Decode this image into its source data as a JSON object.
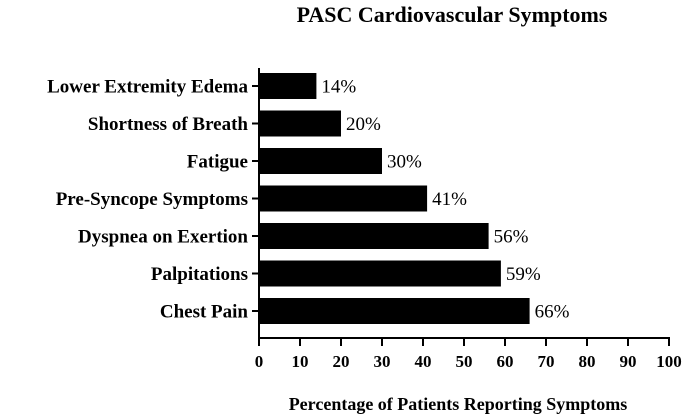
{
  "chart_data": {
    "type": "bar",
    "orientation": "horizontal",
    "title": "PASC Cardiovascular Symptoms",
    "xlabel": "Percentage of Patients Reporting Symptoms",
    "ylabel": "",
    "xlim": [
      0,
      100
    ],
    "x_ticks": [
      0,
      10,
      20,
      30,
      40,
      50,
      60,
      70,
      80,
      90,
      100
    ],
    "grid": false,
    "bar_color": "#000000",
    "categories": [
      "Lower Extremity Edema",
      "Shortness of Breath",
      "Fatigue",
      "Pre-Syncope Symptoms",
      "Dyspnea on Exertion",
      "Palpitations",
      "Chest Pain"
    ],
    "values": [
      14,
      20,
      30,
      41,
      56,
      59,
      66
    ],
    "data_labels": [
      "14%",
      "20%",
      "30%",
      "41%",
      "56%",
      "59%",
      "66%"
    ]
  }
}
